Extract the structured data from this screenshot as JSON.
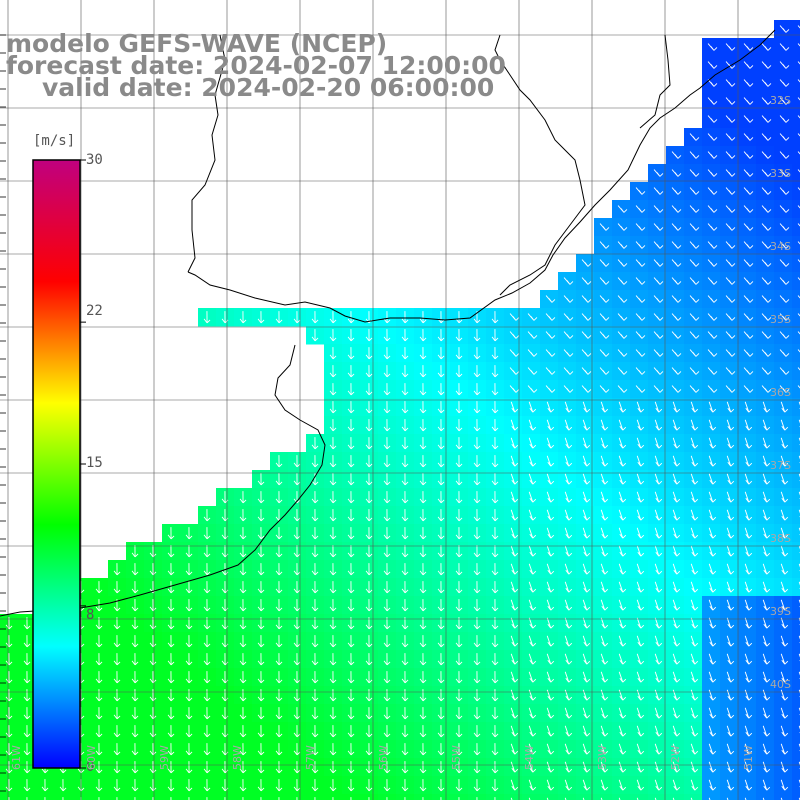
{
  "header": {
    "line1": "modelo GEFS-WAVE (NCEP)",
    "line2": "forecast date: 2024-02-07 12:00:00",
    "line3": "valid date: 2024-02-20 06:00:00"
  },
  "colorbar": {
    "unit": "[m/s]",
    "ticks": [
      {
        "label": "30",
        "value": 30
      },
      {
        "label": "22",
        "value": 22
      },
      {
        "label": "15",
        "value": 15
      },
      {
        "label": "8",
        "value": 8
      },
      {
        "label": "0",
        "value": 0
      }
    ],
    "stops": [
      "#0000ff",
      "#00ffff",
      "#00ff00",
      "#ffff00",
      "#ff0000",
      "#c0007f"
    ]
  },
  "lat_labels": [
    "32S",
    "33S",
    "34S",
    "35S",
    "36S",
    "37S",
    "38S",
    "39S",
    "40S"
  ],
  "lon_labels": [
    "61W",
    "60W",
    "59W",
    "58W",
    "57W",
    "56W",
    "55W",
    "54W",
    "53W",
    "52W",
    "51W"
  ],
  "colors": {
    "land": "#ffffff",
    "coast": "#000000",
    "grid": "#555555",
    "arrow": "#ffffff"
  }
}
